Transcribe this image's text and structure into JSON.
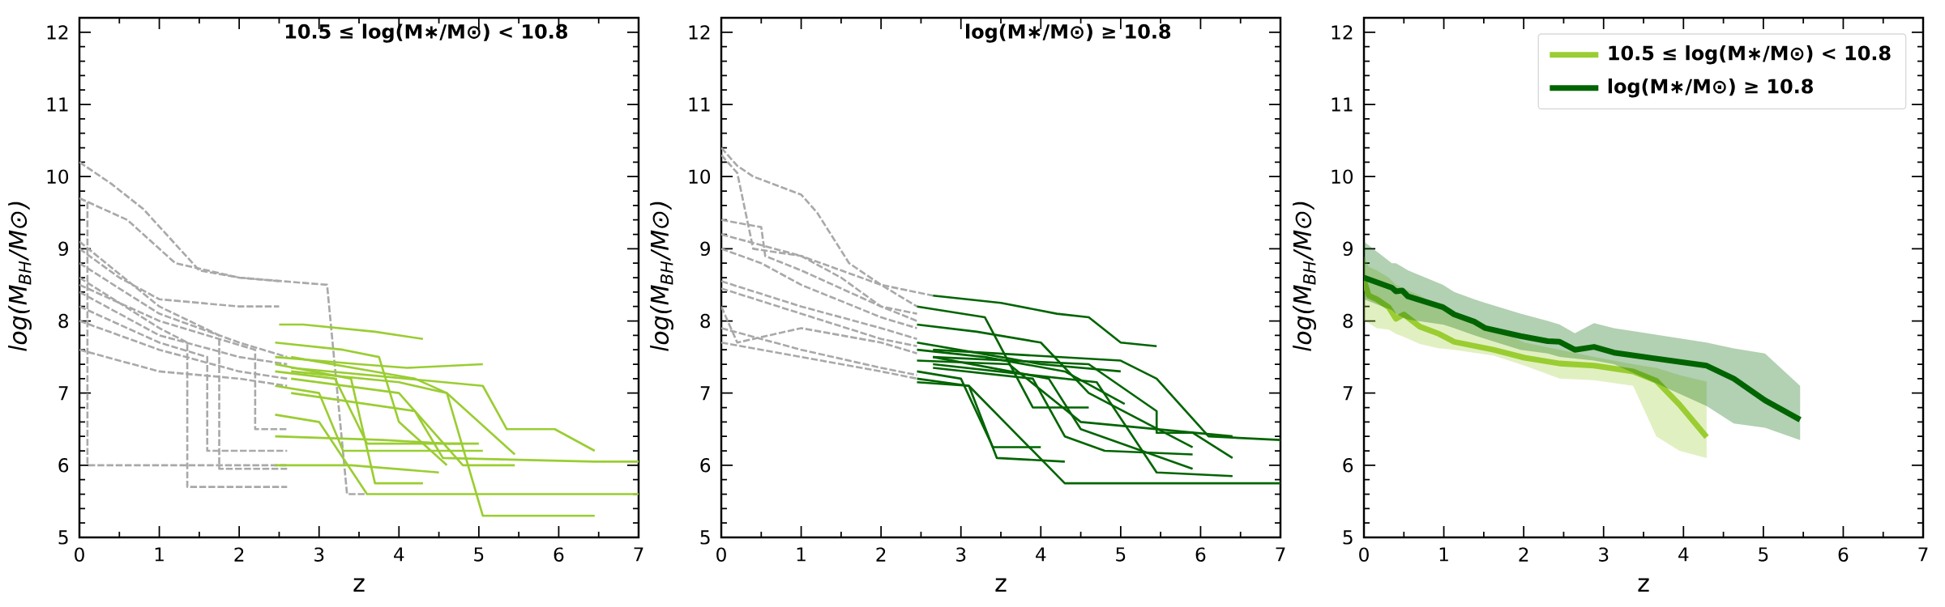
{
  "chart_data": [
    {
      "type": "line",
      "title": "10.5 ≤ log(M∗/M⊙) < 10.8",
      "xlabel": "z",
      "ylabel": "log(M$_{BH}$/M⊙)",
      "xlim": [
        0,
        7
      ],
      "ylim": [
        5,
        12.2
      ],
      "xticks": [
        0,
        1,
        2,
        3,
        4,
        5,
        6,
        7
      ],
      "yticks": [
        5,
        6,
        7,
        8,
        9,
        10,
        11,
        12
      ],
      "marker": "none",
      "series": [
        {
          "color": "#a9a9a9",
          "line_style": "dashed",
          "x": [
            0,
            0.4,
            0.8,
            1.5,
            2.0,
            2.5
          ],
          "values": [
            10.2,
            9.9,
            9.55,
            8.7,
            8.6,
            8.55
          ]
        },
        {
          "color": "#a9a9a9",
          "line_style": "dashed",
          "x": [
            0,
            0.6,
            1.2,
            2.0,
            3.1,
            3.35,
            3.6
          ],
          "values": [
            9.7,
            9.4,
            8.8,
            8.6,
            8.5,
            5.6,
            5.6
          ]
        },
        {
          "color": "#a9a9a9",
          "line_style": "dashed",
          "x": [
            0,
            0.5,
            1.0,
            2.0,
            2.5
          ],
          "values": [
            9.0,
            8.6,
            8.3,
            8.2,
            8.2
          ]
        },
        {
          "color": "#a9a9a9",
          "line_style": "dashed",
          "x": [
            0,
            1.0,
            2.0,
            2.6
          ],
          "values": [
            8.8,
            8.1,
            7.7,
            7.5
          ]
        },
        {
          "color": "#a9a9a9",
          "line_style": "dashed",
          "x": [
            0,
            1.0,
            2.0,
            2.6
          ],
          "values": [
            8.4,
            7.8,
            7.5,
            7.4
          ]
        },
        {
          "color": "#a9a9a9",
          "line_style": "dashed",
          "x": [
            0,
            1.0,
            2.0,
            2.6
          ],
          "values": [
            8.0,
            7.6,
            7.3,
            7.2
          ]
        },
        {
          "color": "#a9a9a9",
          "line_style": "dashed",
          "x": [
            0,
            1.0,
            2.0,
            2.6
          ],
          "values": [
            7.6,
            7.3,
            7.2,
            7.1
          ]
        },
        {
          "color": "#a9a9a9",
          "line_style": "dashed",
          "x": [
            0,
            0.1,
            0.1,
            2.6
          ],
          "values": [
            9.7,
            9.65,
            6.0,
            6.0
          ]
        },
        {
          "color": "#a9a9a9",
          "line_style": "dashed",
          "x": [
            0,
            1.0,
            1.35,
            1.35,
            2.6
          ],
          "values": [
            8.6,
            7.9,
            7.7,
            5.7,
            5.7
          ]
        },
        {
          "color": "#a9a9a9",
          "line_style": "dashed",
          "x": [
            0,
            1.0,
            1.75,
            1.75,
            2.6
          ],
          "values": [
            9.1,
            8.2,
            7.8,
            5.95,
            5.95
          ]
        },
        {
          "color": "#a9a9a9",
          "line_style": "dashed",
          "x": [
            0,
            1.0,
            1.6,
            1.6,
            2.6
          ],
          "values": [
            8.2,
            7.7,
            7.5,
            6.2,
            6.2
          ]
        },
        {
          "color": "#a9a9a9",
          "line_style": "dashed",
          "x": [
            0,
            1.0,
            2.2,
            2.2,
            2.6
          ],
          "values": [
            8.5,
            8.0,
            7.6,
            6.5,
            6.5
          ]
        },
        {
          "color": "#9acd32",
          "line_style": "solid",
          "x": [
            2.5,
            2.8,
            3.7,
            4.3
          ],
          "values": [
            7.95,
            7.95,
            7.85,
            7.75
          ]
        },
        {
          "color": "#9acd32",
          "line_style": "solid",
          "x": [
            2.45,
            3.3,
            3.75,
            4.0,
            4.6
          ],
          "values": [
            7.7,
            7.6,
            7.5,
            6.6,
            6.0
          ]
        },
        {
          "color": "#9acd32",
          "line_style": "solid",
          "x": [
            2.45,
            3.5,
            4.1,
            5.05
          ],
          "values": [
            7.5,
            7.4,
            7.35,
            7.4
          ]
        },
        {
          "color": "#9acd32",
          "line_style": "solid",
          "x": [
            2.45,
            3.4,
            3.7,
            4.3
          ],
          "values": [
            7.4,
            7.2,
            5.75,
            5.75
          ]
        },
        {
          "color": "#9acd32",
          "line_style": "solid",
          "x": [
            2.45,
            3.2,
            3.6,
            4.8
          ],
          "values": [
            7.3,
            7.2,
            6.3,
            6.3
          ]
        },
        {
          "color": "#9acd32",
          "line_style": "solid",
          "x": [
            2.45,
            3.0,
            3.3,
            5.05
          ],
          "values": [
            7.1,
            7.0,
            6.2,
            6.2
          ]
        },
        {
          "color": "#9acd32",
          "line_style": "solid",
          "x": [
            2.45,
            3.0,
            3.6,
            7.0
          ],
          "values": [
            6.7,
            6.6,
            5.6,
            5.6
          ]
        },
        {
          "color": "#9acd32",
          "line_style": "solid",
          "x": [
            2.45,
            3.4,
            4.5
          ],
          "values": [
            6.0,
            6.0,
            5.9
          ]
        },
        {
          "color": "#9acd32",
          "line_style": "solid",
          "x": [
            2.45,
            3.8,
            4.6,
            5.0
          ],
          "values": [
            6.4,
            6.35,
            6.3,
            6.3
          ]
        },
        {
          "color": "#9acd32",
          "line_style": "solid",
          "x": [
            2.65,
            4.2,
            4.6,
            5.05,
            6.45
          ],
          "values": [
            7.5,
            7.2,
            7.0,
            5.3,
            5.3
          ]
        },
        {
          "color": "#9acd32",
          "line_style": "solid",
          "x": [
            2.65,
            4.0,
            4.6,
            5.45
          ],
          "values": [
            7.3,
            7.15,
            7.0,
            6.15
          ]
        },
        {
          "color": "#9acd32",
          "line_style": "solid",
          "x": [
            2.65,
            5.05,
            5.35,
            5.95,
            6.45
          ],
          "values": [
            7.35,
            7.1,
            6.5,
            6.5,
            6.2
          ]
        },
        {
          "color": "#9acd32",
          "line_style": "solid",
          "x": [
            2.65,
            4.2,
            4.55,
            6.45,
            7.0
          ],
          "values": [
            7.0,
            6.75,
            6.1,
            6.05,
            6.05
          ]
        },
        {
          "color": "#9acd32",
          "line_style": "solid",
          "x": [
            2.65,
            4.0,
            4.8,
            5.45
          ],
          "values": [
            7.2,
            7.0,
            6.0,
            6.0
          ]
        }
      ]
    },
    {
      "type": "line",
      "title": "log(M∗/M⊙) ≥ 10.8",
      "xlabel": "z",
      "ylabel": "log(M$_{BH}$/M⊙)",
      "xlim": [
        0,
        7
      ],
      "ylim": [
        5,
        12.2
      ],
      "xticks": [
        0,
        1,
        2,
        3,
        4,
        5,
        6,
        7
      ],
      "yticks": [
        5,
        6,
        7,
        8,
        9,
        10,
        11,
        12
      ],
      "marker": "none",
      "series": [
        {
          "color": "#a9a9a9",
          "line_style": "dashed",
          "x": [
            0,
            0.2,
            0.4,
            1.0,
            1.2,
            1.6,
            2.0,
            2.65
          ],
          "values": [
            10.4,
            10.15,
            10.0,
            9.75,
            9.5,
            8.8,
            8.5,
            8.35
          ]
        },
        {
          "color": "#a9a9a9",
          "line_style": "dashed",
          "x": [
            0,
            0.2,
            0.4,
            1.0,
            2.0,
            2.45
          ],
          "values": [
            10.3,
            10.05,
            9.0,
            8.9,
            8.5,
            8.2
          ]
        },
        {
          "color": "#a9a9a9",
          "line_style": "dashed",
          "x": [
            0,
            0.5,
            0.55,
            1.0,
            2.0,
            2.45
          ],
          "values": [
            9.4,
            9.3,
            8.9,
            8.7,
            8.2,
            8.0
          ]
        },
        {
          "color": "#a9a9a9",
          "line_style": "dashed",
          "x": [
            0,
            1.0,
            2.0,
            2.45
          ],
          "values": [
            8.55,
            8.2,
            7.9,
            7.75
          ]
        },
        {
          "color": "#a9a9a9",
          "line_style": "dashed",
          "x": [
            0,
            1.0,
            2.0,
            2.45
          ],
          "values": [
            8.45,
            8.1,
            7.75,
            7.65
          ]
        },
        {
          "color": "#a9a9a9",
          "line_style": "dashed",
          "x": [
            0,
            0.2,
            1.0,
            2.0,
            2.45
          ],
          "values": [
            8.2,
            7.7,
            7.9,
            7.7,
            7.55
          ]
        },
        {
          "color": "#a9a9a9",
          "line_style": "dashed",
          "x": [
            0,
            1.0,
            2.0,
            2.45
          ],
          "values": [
            7.9,
            7.6,
            7.35,
            7.25
          ]
        },
        {
          "color": "#a9a9a9",
          "line_style": "dashed",
          "x": [
            0,
            1.0,
            2.0,
            2.45
          ],
          "values": [
            7.7,
            7.5,
            7.3,
            7.2
          ]
        },
        {
          "color": "#a9a9a9",
          "line_style": "dashed",
          "x": [
            0,
            0.5,
            1.0,
            2.0,
            2.45
          ],
          "values": [
            9.0,
            8.8,
            8.5,
            8.05,
            7.9
          ]
        },
        {
          "color": "#a9a9a9",
          "line_style": "dashed",
          "x": [
            0,
            1.0,
            1.5,
            2.0,
            2.45
          ],
          "values": [
            9.2,
            8.9,
            8.6,
            8.2,
            8.1
          ]
        },
        {
          "color": "#006400",
          "line_style": "solid",
          "x": [
            2.65,
            3.5,
            4.2,
            4.6,
            5.0,
            5.45
          ],
          "values": [
            8.35,
            8.25,
            8.1,
            8.05,
            7.7,
            7.65
          ]
        },
        {
          "color": "#006400",
          "line_style": "solid",
          "x": [
            2.45,
            3.3,
            3.9,
            4.6
          ],
          "values": [
            8.2,
            8.05,
            6.8,
            6.8
          ]
        },
        {
          "color": "#006400",
          "line_style": "solid",
          "x": [
            2.45,
            3.2,
            4.0,
            4.6,
            5.9
          ],
          "values": [
            7.95,
            7.85,
            7.7,
            7.0,
            6.25
          ]
        },
        {
          "color": "#006400",
          "line_style": "solid",
          "x": [
            2.45,
            3.5,
            4.0,
            5.0
          ],
          "values": [
            7.7,
            7.5,
            7.4,
            7.3
          ]
        },
        {
          "color": "#006400",
          "line_style": "solid",
          "x": [
            2.45,
            3.3,
            4.3,
            5.05
          ],
          "values": [
            7.6,
            7.5,
            7.3,
            6.85
          ]
        },
        {
          "color": "#006400",
          "line_style": "solid",
          "x": [
            2.45,
            3.6,
            4.5,
            6.4
          ],
          "values": [
            7.45,
            7.4,
            6.6,
            6.4
          ]
        },
        {
          "color": "#006400",
          "line_style": "solid",
          "x": [
            2.45,
            3.0,
            3.4,
            4.0
          ],
          "values": [
            7.3,
            7.2,
            6.25,
            6.25
          ]
        },
        {
          "color": "#006400",
          "line_style": "solid",
          "x": [
            2.45,
            3.1,
            3.45,
            4.3
          ],
          "values": [
            7.15,
            7.1,
            6.1,
            6.05
          ]
        },
        {
          "color": "#006400",
          "line_style": "solid",
          "x": [
            2.45,
            3.1,
            4.3,
            7.0
          ],
          "values": [
            7.2,
            7.1,
            5.75,
            5.75
          ]
        },
        {
          "color": "#006400",
          "line_style": "solid",
          "x": [
            2.65,
            4.6,
            5.45,
            5.45,
            5.9,
            6.4
          ],
          "values": [
            7.5,
            7.4,
            6.75,
            6.45,
            6.45,
            6.1
          ]
        },
        {
          "color": "#006400",
          "line_style": "solid",
          "x": [
            2.65,
            5.0,
            5.45,
            6.1,
            7.0
          ],
          "values": [
            7.6,
            7.45,
            7.2,
            6.4,
            6.35
          ]
        },
        {
          "color": "#006400",
          "line_style": "solid",
          "x": [
            2.65,
            4.7,
            5.45,
            6.4
          ],
          "values": [
            7.4,
            7.15,
            5.9,
            5.85
          ]
        },
        {
          "color": "#006400",
          "line_style": "solid",
          "x": [
            2.65,
            4.1,
            4.5,
            5.9
          ],
          "values": [
            7.5,
            7.2,
            6.5,
            5.95
          ]
        },
        {
          "color": "#006400",
          "line_style": "solid",
          "x": [
            2.65,
            3.9,
            4.3,
            4.8,
            5.9
          ],
          "values": [
            7.35,
            7.2,
            6.4,
            6.2,
            6.15
          ]
        }
      ]
    },
    {
      "type": "line",
      "xlabel": "z",
      "ylabel": "log(M$_{BH}$/M⊙)",
      "xlim": [
        0,
        7
      ],
      "ylim": [
        5,
        12.2
      ],
      "xticks": [
        0,
        1,
        2,
        3,
        4,
        5,
        6,
        7
      ],
      "yticks": [
        5,
        6,
        7,
        8,
        9,
        10,
        11,
        12
      ],
      "marker": "none",
      "legend": "top right",
      "series": [
        {
          "name": "10.5 ≤ log(M∗/M⊙) < 10.8",
          "color": "#9acd32",
          "line_style": "solid",
          "x": [
            0,
            0.06,
            0.16,
            0.31,
            0.4,
            0.5,
            0.7,
            0.94,
            1.13,
            1.62,
            2.01,
            2.45,
            2.88,
            3.37,
            3.66,
            3.95,
            4.29
          ],
          "values": [
            8.57,
            8.35,
            8.3,
            8.19,
            8.03,
            8.09,
            7.92,
            7.82,
            7.71,
            7.6,
            7.49,
            7.41,
            7.38,
            7.3,
            7.17,
            6.84,
            6.39
          ],
          "upper": [
            8.9,
            8.75,
            8.7,
            8.6,
            8.5,
            8.45,
            8.35,
            8.2,
            8.1,
            7.9,
            7.7,
            7.6,
            7.5,
            7.4,
            7.35,
            7.25,
            7.16
          ],
          "lower": [
            8.0,
            7.97,
            7.9,
            7.88,
            7.82,
            7.78,
            7.68,
            7.62,
            7.6,
            7.52,
            7.38,
            7.2,
            7.18,
            7.1,
            6.4,
            6.2,
            6.1
          ]
        },
        {
          "name": "log(M∗/M⊙) ≥ 10.8",
          "color": "#006400",
          "line_style": "solid",
          "x": [
            0,
            0.35,
            0.4,
            0.48,
            0.55,
            0.99,
            1.13,
            1.38,
            1.52,
            1.96,
            2.3,
            2.45,
            2.64,
            2.88,
            3.13,
            4.29,
            4.63,
            5.02,
            5.46
          ],
          "values": [
            8.6,
            8.46,
            8.41,
            8.42,
            8.34,
            8.19,
            8.09,
            7.99,
            7.9,
            7.79,
            7.72,
            7.71,
            7.6,
            7.64,
            7.56,
            7.38,
            7.2,
            6.9,
            6.63
          ],
          "upper": [
            9.1,
            8.8,
            8.8,
            8.75,
            8.7,
            8.5,
            8.4,
            8.3,
            8.25,
            8.1,
            8.0,
            7.95,
            7.83,
            7.97,
            7.9,
            7.7,
            7.62,
            7.55,
            7.1
          ],
          "lower": [
            8.3,
            8.15,
            8.1,
            8.05,
            8.02,
            7.95,
            7.9,
            7.8,
            7.75,
            7.6,
            7.55,
            7.5,
            7.48,
            7.45,
            7.4,
            6.82,
            6.58,
            6.52,
            6.35
          ]
        }
      ]
    }
  ]
}
